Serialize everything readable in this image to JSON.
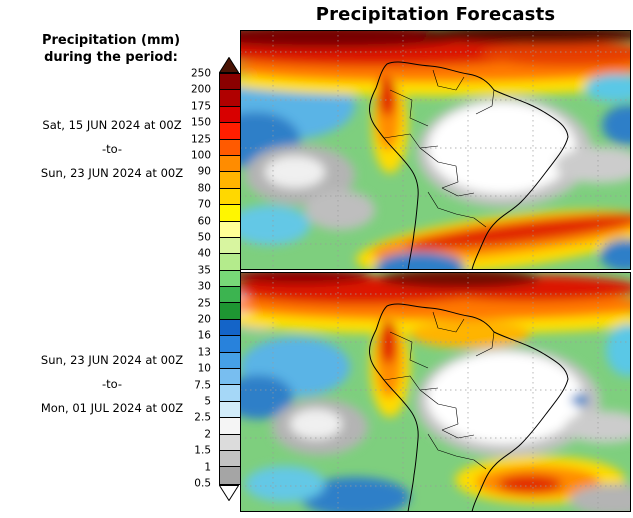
{
  "title": "Precipitation Forecasts",
  "legend": {
    "title_line1": "Precipitation (mm)",
    "title_line2": "during the period:"
  },
  "periods": [
    {
      "start": "Sat, 15 JUN 2024 at 00Z",
      "separator": "-to-",
      "end": "Sun, 23 JUN 2024 at 00Z"
    },
    {
      "start": "Sun, 23 JUN 2024 at 00Z",
      "separator": "-to-",
      "end": "Mon, 01 JUL 2024 at 00Z"
    }
  ],
  "colorbar": {
    "top_arrow_color": "#4a1405",
    "bottom_arrow_color": "#ffffff",
    "values": [
      "250",
      "200",
      "175",
      "150",
      "125",
      "100",
      "90",
      "80",
      "70",
      "60",
      "50",
      "40",
      "35",
      "30",
      "25",
      "20",
      "16",
      "13",
      "10",
      "7.5",
      "5",
      "2.5",
      "2",
      "1.5",
      "1",
      "0.5"
    ],
    "segments": [
      {
        "range": "200-250",
        "color": "#8a0000"
      },
      {
        "range": "175-200",
        "color": "#b00000"
      },
      {
        "range": "150-175",
        "color": "#d80000"
      },
      {
        "range": "125-150",
        "color": "#ff1e00"
      },
      {
        "range": "100-125",
        "color": "#ff5a00"
      },
      {
        "range": "90-100",
        "color": "#ff8c00"
      },
      {
        "range": "80-90",
        "color": "#ffb400"
      },
      {
        "range": "70-80",
        "color": "#ffd800"
      },
      {
        "range": "60-70",
        "color": "#fff600"
      },
      {
        "range": "50-60",
        "color": "#ffff96"
      },
      {
        "range": "40-50",
        "color": "#d8f5a0"
      },
      {
        "range": "35-40",
        "color": "#b4eb8c"
      },
      {
        "range": "30-35",
        "color": "#78d878"
      },
      {
        "range": "25-30",
        "color": "#3cb450"
      },
      {
        "range": "20-25",
        "color": "#1e9632"
      },
      {
        "range": "16-20",
        "color": "#1464c8"
      },
      {
        "range": "13-16",
        "color": "#2882dc"
      },
      {
        "range": "10-13",
        "color": "#46a0e6"
      },
      {
        "range": "7.5-10",
        "color": "#78bef0"
      },
      {
        "range": "5-7.5",
        "color": "#a5d7f7"
      },
      {
        "range": "2.5-5",
        "color": "#d2ecfa"
      },
      {
        "range": "2-2.5",
        "color": "#f5f5f5"
      },
      {
        "range": "1.5-2",
        "color": "#dcdcdc"
      },
      {
        "range": "1-1.5",
        "color": "#c3c3c3"
      },
      {
        "range": "0.5-1",
        "color": "#a5a5a5"
      }
    ]
  }
}
